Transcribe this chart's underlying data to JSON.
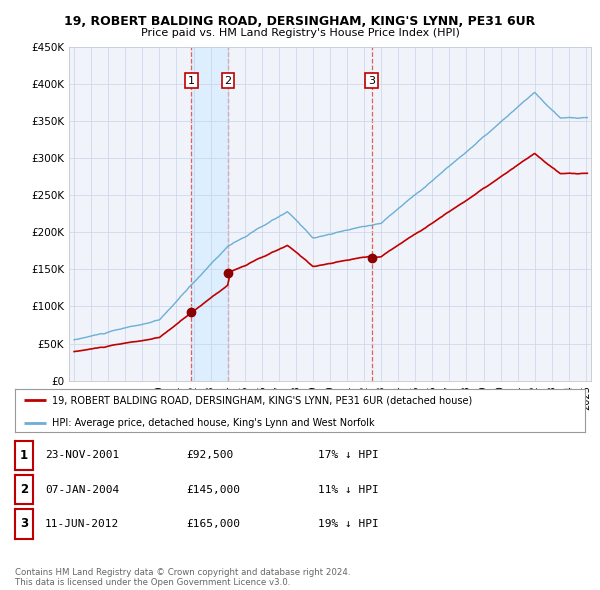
{
  "title": "19, ROBERT BALDING ROAD, DERSINGHAM, KING'S LYNN, PE31 6UR",
  "subtitle": "Price paid vs. HM Land Registry's House Price Index (HPI)",
  "ylim": [
    0,
    450000
  ],
  "yticks": [
    0,
    50000,
    100000,
    150000,
    200000,
    250000,
    300000,
    350000,
    400000,
    450000
  ],
  "ytick_labels": [
    "£0",
    "£50K",
    "£100K",
    "£150K",
    "£200K",
    "£250K",
    "£300K",
    "£350K",
    "£400K",
    "£450K"
  ],
  "hpi_color": "#6baed6",
  "price_color": "#c00000",
  "vline_color": "#e06060",
  "shade_color": "#ddeeff",
  "transactions": [
    {
      "date_num": 2001.897,
      "price": 92500,
      "label": "1"
    },
    {
      "date_num": 2004.025,
      "price": 145000,
      "label": "2"
    },
    {
      "date_num": 2012.44,
      "price": 165000,
      "label": "3"
    }
  ],
  "legend_entries": [
    "19, ROBERT BALDING ROAD, DERSINGHAM, KING'S LYNN, PE31 6UR (detached house)",
    "HPI: Average price, detached house, King's Lynn and West Norfolk"
  ],
  "table_rows": [
    {
      "num": "1",
      "date": "23-NOV-2001",
      "price": "£92,500",
      "hpi": "17% ↓ HPI"
    },
    {
      "num": "2",
      "date": "07-JAN-2004",
      "price": "£145,000",
      "hpi": "11% ↓ HPI"
    },
    {
      "num": "3",
      "date": "11-JUN-2012",
      "price": "£165,000",
      "hpi": "19% ↓ HPI"
    }
  ],
  "footnote": "Contains HM Land Registry data © Crown copyright and database right 2024.\nThis data is licensed under the Open Government Licence v3.0.",
  "background_color": "#ffffff",
  "chart_bg": "#f0f4fa",
  "grid_color": "#c8d4e8"
}
